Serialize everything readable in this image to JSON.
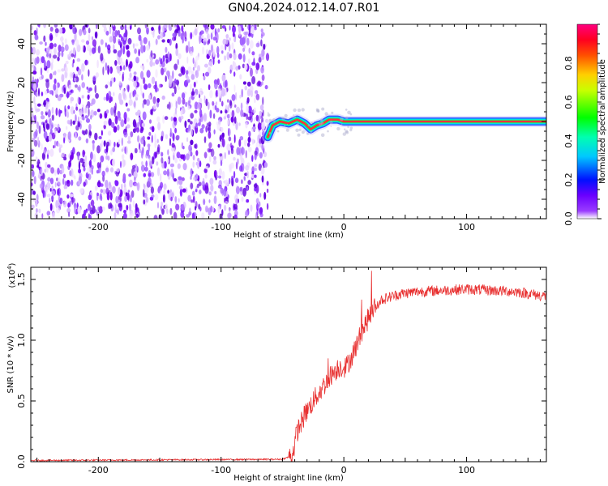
{
  "title": "GN04.2024.012.14.07.R01",
  "chart_data": [
    {
      "type": "heatmap",
      "xlabel": "Height of straight line (km)",
      "ylabel": "Frequency (Hz)",
      "xlim": [
        -255,
        165
      ],
      "ylim": [
        -50,
        50
      ],
      "x_ticks": [
        -200,
        -100,
        0,
        100
      ],
      "y_ticks": [
        -40,
        -20,
        0,
        20,
        40
      ],
      "noise_region_x": [
        -255,
        -62
      ],
      "signal_trace": [
        {
          "x": -62,
          "y": -8
        },
        {
          "x": -58,
          "y": -2
        },
        {
          "x": -52,
          "y": 0
        },
        {
          "x": -45,
          "y": -1
        },
        {
          "x": -38,
          "y": 1
        },
        {
          "x": -32,
          "y": -1
        },
        {
          "x": -27,
          "y": -4
        },
        {
          "x": -22,
          "y": -2
        },
        {
          "x": -17,
          "y": -1
        },
        {
          "x": -12,
          "y": 1
        },
        {
          "x": -5,
          "y": 1
        },
        {
          "x": 0,
          "y": 0
        },
        {
          "x": 165,
          "y": 0
        }
      ],
      "colorbar": {
        "label": "Normalized spectral amplitude",
        "ticks": [
          "0.0",
          "0.2",
          "0.4",
          "0.6",
          "0.8"
        ],
        "range": [
          0,
          1
        ]
      },
      "colormap": [
        "#ffffff",
        "#8000ff",
        "#0000ff",
        "#00c8ff",
        "#00ff80",
        "#00ff00",
        "#ffff00",
        "#ff8000",
        "#ff0000",
        "#ff0080"
      ]
    },
    {
      "type": "line",
      "xlabel": "Height of straight line (km)",
      "ylabel": "SNR (10 * v/v)",
      "y_scale_note": "(x10",
      "y_scale_exp": "4",
      "y_scale_close": ")",
      "xlim": [
        -255,
        165
      ],
      "ylim": [
        0,
        1.6
      ],
      "x_ticks": [
        -200,
        -100,
        0,
        100
      ],
      "y_ticks": [
        "0.0",
        "0.5",
        "1.0",
        "1.5"
      ],
      "series": [
        {
          "color": "#e83030",
          "points": [
            {
              "x": -255,
              "y": 0.01
            },
            {
              "x": -50,
              "y": 0.02
            },
            {
              "x": -42,
              "y": 0.05
            },
            {
              "x": -38,
              "y": 0.25
            },
            {
              "x": -32,
              "y": 0.38
            },
            {
              "x": -25,
              "y": 0.5
            },
            {
              "x": -18,
              "y": 0.6
            },
            {
              "x": -10,
              "y": 0.72
            },
            {
              "x": -4,
              "y": 0.78
            },
            {
              "x": 2,
              "y": 0.78
            },
            {
              "x": 8,
              "y": 0.9
            },
            {
              "x": 15,
              "y": 1.08
            },
            {
              "x": 22,
              "y": 1.22
            },
            {
              "x": 30,
              "y": 1.33
            },
            {
              "x": 45,
              "y": 1.38
            },
            {
              "x": 60,
              "y": 1.4
            },
            {
              "x": 80,
              "y": 1.41
            },
            {
              "x": 100,
              "y": 1.42
            },
            {
              "x": 120,
              "y": 1.41
            },
            {
              "x": 140,
              "y": 1.4
            },
            {
              "x": 165,
              "y": 1.36
            }
          ]
        }
      ]
    }
  ]
}
